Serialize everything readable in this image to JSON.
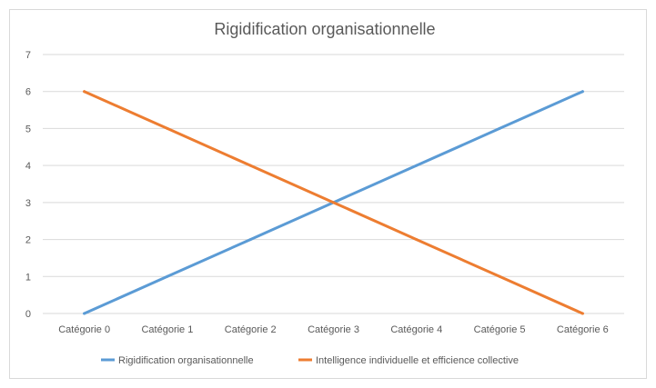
{
  "chart_data": {
    "type": "line",
    "title": "Rigidification organisationnelle",
    "categories": [
      "Catégorie 0",
      "Catégorie 1",
      "Catégorie 2",
      "Catégorie 3",
      "Catégorie 4",
      "Catégorie 5",
      "Catégorie 6"
    ],
    "series": [
      {
        "name": "Rigidification organisationnelle",
        "color": "#5b9bd5",
        "values": [
          0,
          1,
          2,
          3,
          4,
          5,
          6
        ]
      },
      {
        "name": "Intelligence individuelle et efficience collective",
        "color": "#ed7d31",
        "values": [
          6,
          5,
          4,
          3,
          2,
          1,
          0
        ]
      }
    ],
    "ylim": [
      0,
      7
    ],
    "yticks": [
      0,
      1,
      2,
      3,
      4,
      5,
      6,
      7
    ],
    "grid": true,
    "legend_position": "bottom",
    "xlabel": "",
    "ylabel": ""
  }
}
